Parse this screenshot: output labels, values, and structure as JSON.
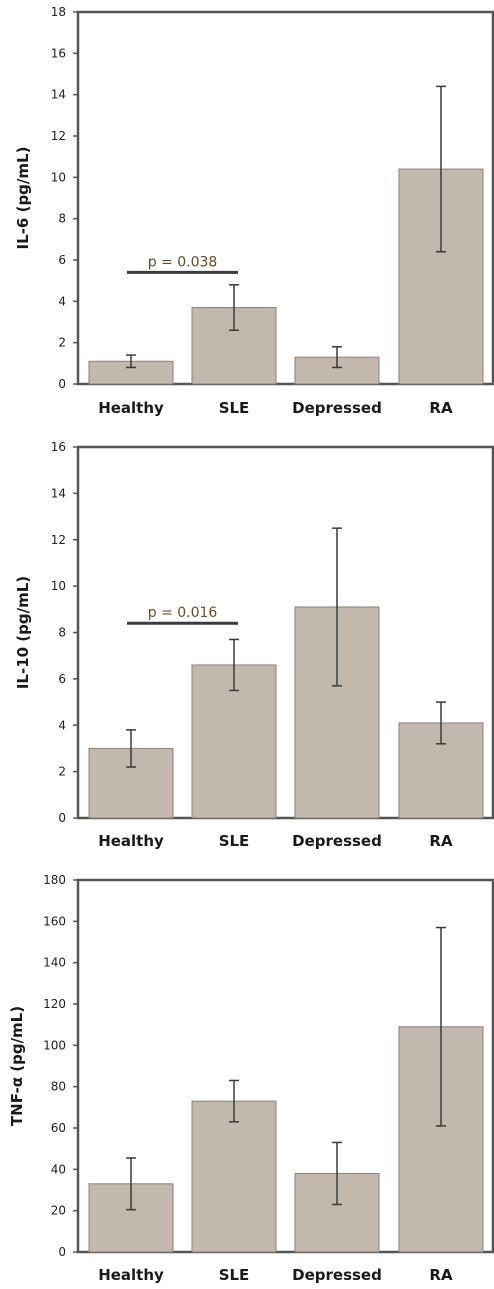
{
  "bar_color": "#c3b8ae",
  "bar_stroke": "#8c8178",
  "error_color": "#3a3a3a",
  "sig_line_color": "#3a3a3a",
  "sig_text_color": "#6b4a1e",
  "chart_data": [
    {
      "type": "bar",
      "categories": [
        "Healthy",
        "SLE",
        "Depressed",
        "RA"
      ],
      "values": [
        1.1,
        3.7,
        1.3,
        10.4
      ],
      "error": [
        0.3,
        1.1,
        0.5,
        4.0
      ],
      "title": "",
      "xlabel": "",
      "ylabel": "IL-6 (pg/mL)",
      "ylim": [
        0,
        18
      ],
      "yticks": [
        0,
        2,
        4,
        6,
        8,
        10,
        12,
        14,
        16,
        18
      ],
      "grid": false,
      "annotation": {
        "text": "p = 0.038",
        "from": 0,
        "to": 1,
        "y": 5.4
      }
    },
    {
      "type": "bar",
      "categories": [
        "Healthy",
        "SLE",
        "Depressed",
        "RA"
      ],
      "values": [
        3.0,
        6.6,
        9.1,
        4.1
      ],
      "error": [
        0.8,
        1.1,
        3.4,
        0.9
      ],
      "title": "",
      "xlabel": "",
      "ylabel": "IL-10 (pg/mL)",
      "ylim": [
        0,
        16
      ],
      "yticks": [
        0,
        2,
        4,
        6,
        8,
        10,
        12,
        14,
        16
      ],
      "grid": false,
      "annotation": {
        "text": "p = 0.016",
        "from": 0,
        "to": 1,
        "y": 8.4
      }
    },
    {
      "type": "bar",
      "categories": [
        "Healthy",
        "SLE",
        "Depressed",
        "RA"
      ],
      "values": [
        33,
        73,
        38,
        109
      ],
      "error": [
        12.5,
        10,
        15,
        48
      ],
      "title": "",
      "xlabel": "",
      "ylabel": "TNF-α (pg/mL)",
      "ylim": [
        0,
        180
      ],
      "yticks": [
        0,
        20,
        40,
        60,
        80,
        100,
        120,
        140,
        160,
        180
      ],
      "grid": false
    }
  ]
}
